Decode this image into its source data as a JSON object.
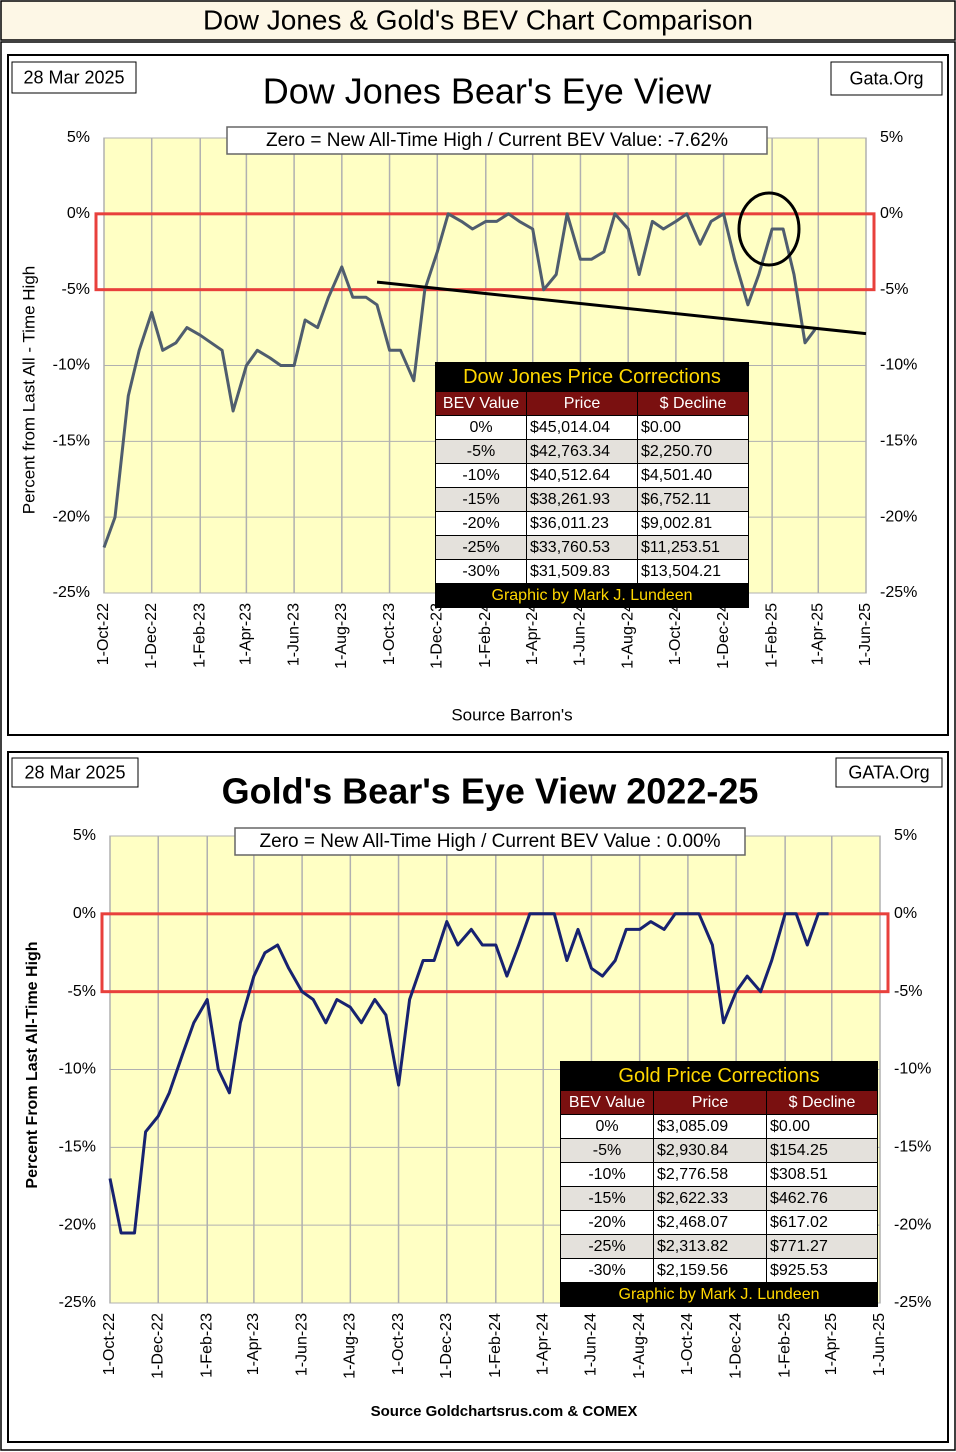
{
  "header": {
    "title": "Dow Jones & Gold's BEV Chart Comparison"
  },
  "chart_data": [
    {
      "type": "line",
      "title": "Dow Jones Bear's Eye View",
      "date_label": "28 Mar 2025",
      "site": "Gata.Org",
      "subtitle": "Zero = New All-Time High / Current BEV Value:  -7.62%",
      "ylabel": "Percent from Last All - Time High",
      "xlabel": "Source Barron's",
      "xlim": [
        "2022-10-01",
        "2025-06-01"
      ],
      "xticks": [
        {
          "value": "2022-10-01",
          "label": "1-Oct-22"
        },
        {
          "value": "2022-12-01",
          "label": "1-Dec-22"
        },
        {
          "value": "2023-02-01",
          "label": "1-Feb-23"
        },
        {
          "value": "2023-04-01",
          "label": "1-Apr-23"
        },
        {
          "value": "2023-06-01",
          "label": "1-Jun-23"
        },
        {
          "value": "2023-08-01",
          "label": "1-Aug-23"
        },
        {
          "value": "2023-10-01",
          "label": "1-Oct-23"
        },
        {
          "value": "2023-12-01",
          "label": "1-Dec-23"
        },
        {
          "value": "2024-02-01",
          "label": "1-Feb-24"
        },
        {
          "value": "2024-04-01",
          "label": "1-Apr-24"
        },
        {
          "value": "2024-06-01",
          "label": "1-Jun-24"
        },
        {
          "value": "2024-08-01",
          "label": "1-Aug-24"
        },
        {
          "value": "2024-10-01",
          "label": "1-Oct-24"
        },
        {
          "value": "2024-12-01",
          "label": "1-Dec-24"
        },
        {
          "value": "2025-02-01",
          "label": "1-Feb-25"
        },
        {
          "value": "2025-04-01",
          "label": "1-Apr-25"
        },
        {
          "value": "2025-06-01",
          "label": "1-Jun-25"
        }
      ],
      "ylim": [
        -25,
        5
      ],
      "yticks": [
        {
          "value": 5,
          "label": "5%"
        },
        {
          "value": 0,
          "label": "0%"
        },
        {
          "value": -5,
          "label": "-5%"
        },
        {
          "value": -10,
          "label": "-10%"
        },
        {
          "value": -15,
          "label": "-15%"
        },
        {
          "value": -20,
          "label": "-20%"
        },
        {
          "value": -25,
          "label": "-25%"
        }
      ],
      "grid": true,
      "background": "#ffffc4",
      "highlight": {
        "from": 0,
        "to": -5,
        "color": "#e8403c"
      },
      "trend_line": {
        "x": [
          "2023-09-15",
          "2025-06-01"
        ],
        "values": [
          -4.5,
          -7.9
        ],
        "color": "#000000"
      },
      "circle_marker": {
        "x": "2025-01-28",
        "y": -1
      },
      "x": [
        "2022-10-01",
        "2022-10-15",
        "2022-11-01",
        "2022-11-15",
        "2022-12-01",
        "2022-12-15",
        "2023-01-01",
        "2023-01-15",
        "2023-02-01",
        "2023-02-15",
        "2023-03-01",
        "2023-03-15",
        "2023-04-01",
        "2023-04-15",
        "2023-05-01",
        "2023-05-15",
        "2023-06-01",
        "2023-06-15",
        "2023-07-01",
        "2023-07-15",
        "2023-08-01",
        "2023-08-15",
        "2023-09-01",
        "2023-09-15",
        "2023-10-01",
        "2023-10-15",
        "2023-11-01",
        "2023-11-15",
        "2023-12-01",
        "2023-12-15",
        "2024-01-01",
        "2024-01-15",
        "2024-02-01",
        "2024-02-15",
        "2024-03-01",
        "2024-03-15",
        "2024-04-01",
        "2024-04-15",
        "2024-05-01",
        "2024-05-15",
        "2024-06-01",
        "2024-06-15",
        "2024-07-01",
        "2024-07-15",
        "2024-08-01",
        "2024-08-15",
        "2024-09-01",
        "2024-09-15",
        "2024-10-01",
        "2024-10-15",
        "2024-11-01",
        "2024-11-15",
        "2024-12-01",
        "2024-12-15",
        "2025-01-01",
        "2025-01-15",
        "2025-02-01",
        "2025-02-15",
        "2025-03-01",
        "2025-03-15",
        "2025-03-28"
      ],
      "series": [
        {
          "color": "#4f5d6e",
          "values": [
            -22,
            -20,
            -12,
            -9,
            -6.5,
            -9,
            -8.5,
            -7.5,
            -8,
            -8.5,
            -9,
            -13,
            -10,
            -9,
            -9.5,
            -10,
            -10,
            -7,
            -7.5,
            -5.5,
            -3.5,
            -5.5,
            -5.5,
            -6,
            -9,
            -9,
            -11,
            -5,
            -2.5,
            0,
            -0.5,
            -1,
            -0.5,
            -0.5,
            0,
            -0.5,
            -1,
            -5,
            -4,
            0,
            -3,
            -3,
            -2.5,
            0,
            -1,
            -4,
            -0.5,
            -1,
            -0.5,
            0,
            -2,
            -0.5,
            0,
            -3,
            -6,
            -4,
            -1,
            -1,
            -4,
            -8.5,
            -7.62
          ]
        }
      ],
      "table": {
        "title": "Dow Jones Price Corrections",
        "columns": [
          "BEV Value",
          "Price",
          "$ Decline"
        ],
        "rows": [
          [
            "0%",
            "$45,014.04",
            "$0.00"
          ],
          [
            "-5%",
            "$42,763.34",
            "$2,250.70"
          ],
          [
            "-10%",
            "$40,512.64",
            "$4,501.40"
          ],
          [
            "-15%",
            "$38,261.93",
            "$6,752.11"
          ],
          [
            "-20%",
            "$36,011.23",
            "$9,002.81"
          ],
          [
            "-25%",
            "$33,760.53",
            "$11,253.51"
          ],
          [
            "-30%",
            "$31,509.83",
            "$13,504.21"
          ]
        ],
        "footer": "Graphic by Mark J. Lundeen"
      }
    },
    {
      "type": "line",
      "title": "Gold's Bear's Eye View 2022-25",
      "date_label": "28 Mar 2025",
      "site": "GATA.Org",
      "subtitle": "Zero = New All-Time High / Current  BEV Value : 0.00%",
      "ylabel": "Percent  From Last  All-Time  High",
      "xlabel": "Source Goldchartsrus.com & COMEX",
      "xlim": [
        "2022-10-01",
        "2025-06-01"
      ],
      "xticks": [
        {
          "value": "2022-10-01",
          "label": "1-Oct-22"
        },
        {
          "value": "2022-12-01",
          "label": "1-Dec-22"
        },
        {
          "value": "2023-02-01",
          "label": "1-Feb-23"
        },
        {
          "value": "2023-04-01",
          "label": "1-Apr-23"
        },
        {
          "value": "2023-06-01",
          "label": "1-Jun-23"
        },
        {
          "value": "2023-08-01",
          "label": "1-Aug-23"
        },
        {
          "value": "2023-10-01",
          "label": "1-Oct-23"
        },
        {
          "value": "2023-12-01",
          "label": "1-Dec-23"
        },
        {
          "value": "2024-02-01",
          "label": "1-Feb-24"
        },
        {
          "value": "2024-04-01",
          "label": "1-Apr-24"
        },
        {
          "value": "2024-06-01",
          "label": "1-Jun-24"
        },
        {
          "value": "2024-08-01",
          "label": "1-Aug-24"
        },
        {
          "value": "2024-10-01",
          "label": "1-Oct-24"
        },
        {
          "value": "2024-12-01",
          "label": "1-Dec-24"
        },
        {
          "value": "2025-02-01",
          "label": "1-Feb-25"
        },
        {
          "value": "2025-04-01",
          "label": "1-Apr-25"
        },
        {
          "value": "2025-06-01",
          "label": "1-Jun-25"
        }
      ],
      "ylim": [
        -25,
        5
      ],
      "yticks": [
        {
          "value": 5,
          "label": "5%"
        },
        {
          "value": 0,
          "label": "0%"
        },
        {
          "value": -5,
          "label": "-5%"
        },
        {
          "value": -10,
          "label": "-10%"
        },
        {
          "value": -15,
          "label": "-15%"
        },
        {
          "value": -20,
          "label": "-20%"
        },
        {
          "value": -25,
          "label": "-25%"
        }
      ],
      "grid": true,
      "background": "#ffffc4",
      "highlight": {
        "from": 0,
        "to": -5,
        "color": "#e8403c"
      },
      "x": [
        "2022-10-01",
        "2022-10-15",
        "2022-11-01",
        "2022-11-15",
        "2022-12-01",
        "2022-12-15",
        "2023-01-01",
        "2023-01-15",
        "2023-02-01",
        "2023-02-15",
        "2023-03-01",
        "2023-03-15",
        "2023-04-01",
        "2023-04-15",
        "2023-05-01",
        "2023-05-15",
        "2023-06-01",
        "2023-06-15",
        "2023-07-01",
        "2023-07-15",
        "2023-08-01",
        "2023-08-15",
        "2023-09-01",
        "2023-09-15",
        "2023-10-01",
        "2023-10-15",
        "2023-11-01",
        "2023-11-15",
        "2023-12-01",
        "2023-12-15",
        "2024-01-01",
        "2024-01-15",
        "2024-02-01",
        "2024-02-15",
        "2024-03-01",
        "2024-03-15",
        "2024-04-01",
        "2024-04-15",
        "2024-05-01",
        "2024-05-15",
        "2024-06-01",
        "2024-06-15",
        "2024-07-01",
        "2024-07-15",
        "2024-08-01",
        "2024-08-15",
        "2024-09-01",
        "2024-09-15",
        "2024-10-01",
        "2024-10-15",
        "2024-11-01",
        "2024-11-15",
        "2024-12-01",
        "2024-12-15",
        "2025-01-01",
        "2025-01-15",
        "2025-02-01",
        "2025-02-15",
        "2025-03-01",
        "2025-03-15",
        "2025-03-28"
      ],
      "series": [
        {
          "color": "#172270",
          "values": [
            -17,
            -20.5,
            -20.5,
            -14,
            -13,
            -11.5,
            -9,
            -7,
            -5.5,
            -10,
            -11.5,
            -7,
            -4,
            -2.5,
            -2,
            -3.5,
            -5,
            -5.5,
            -7,
            -5.5,
            -6,
            -7,
            -5.5,
            -6.5,
            -11,
            -5.5,
            -3,
            -3,
            -0.5,
            -2,
            -1,
            -2,
            -2,
            -4,
            -2,
            0,
            0,
            0,
            -3,
            -1,
            -3.5,
            -4,
            -3,
            -1,
            -1,
            -0.5,
            -1,
            0,
            0,
            0,
            -2,
            -7,
            -5,
            -4,
            -5,
            -3,
            0,
            0,
            -2,
            0,
            0
          ]
        }
      ],
      "table": {
        "title": "Gold Price Corrections",
        "columns": [
          "BEV Value",
          "Price",
          "$ Decline"
        ],
        "rows": [
          [
            "0%",
            "$3,085.09",
            "$0.00"
          ],
          [
            "-5%",
            "$2,930.84",
            "$154.25"
          ],
          [
            "-10%",
            "$2,776.58",
            "$308.51"
          ],
          [
            "-15%",
            "$2,622.33",
            "$462.76"
          ],
          [
            "-20%",
            "$2,468.07",
            "$617.02"
          ],
          [
            "-25%",
            "$2,313.82",
            "$771.27"
          ],
          [
            "-30%",
            "$2,159.56",
            "$925.53"
          ]
        ],
        "footer": "Graphic by Mark J. Lundeen"
      }
    }
  ]
}
